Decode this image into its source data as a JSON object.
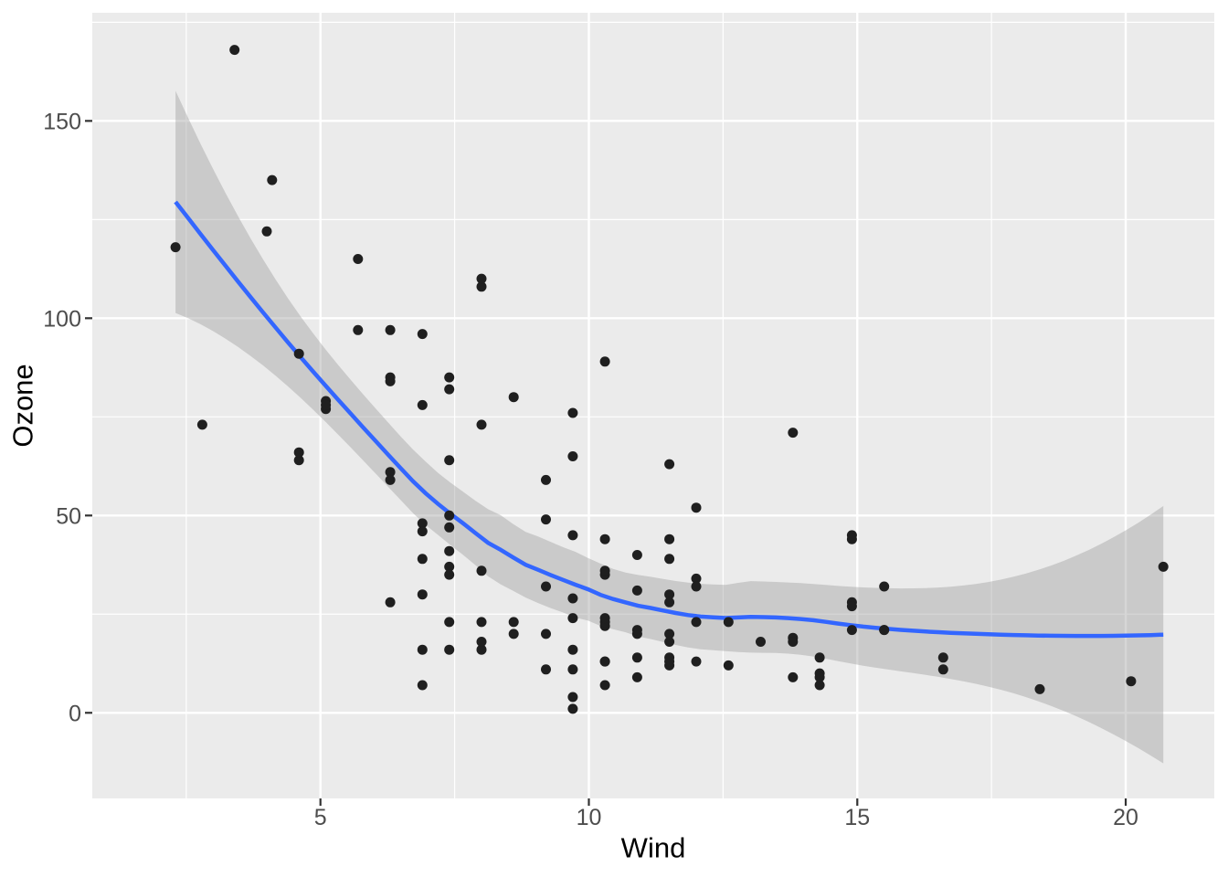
{
  "chart_data": {
    "type": "scatter",
    "title": "",
    "xlabel": "Wind",
    "ylabel": "Ozone",
    "x_ticks": [
      5,
      10,
      15,
      20
    ],
    "x_tick_labels": [
      "5",
      "10",
      "15",
      "20"
    ],
    "x_minor_ticks": [
      2.5,
      7.5,
      12.5,
      17.5
    ],
    "y_ticks": [
      0,
      50,
      100,
      150
    ],
    "y_tick_labels": [
      "0",
      "50",
      "100",
      "150"
    ],
    "y_minor_ticks": [
      25,
      75,
      125,
      175
    ],
    "xlim": [
      0.75,
      21.65
    ],
    "ylim": [
      -21.7,
      177.4
    ],
    "grid": true,
    "legend_position": "none",
    "points": [
      [
        7.4,
        41
      ],
      [
        8,
        36
      ],
      [
        12.6,
        12
      ],
      [
        11.5,
        18
      ],
      [
        14.9,
        28
      ],
      [
        8.6,
        23
      ],
      [
        13.8,
        19
      ],
      [
        20.1,
        8
      ],
      [
        6.9,
        7
      ],
      [
        9.7,
        16
      ],
      [
        9.2,
        11
      ],
      [
        10.9,
        14
      ],
      [
        13.2,
        18
      ],
      [
        11.5,
        14
      ],
      [
        12,
        34
      ],
      [
        18.4,
        6
      ],
      [
        11.5,
        30
      ],
      [
        9.7,
        11
      ],
      [
        9.7,
        1
      ],
      [
        16.6,
        11
      ],
      [
        9.7,
        4
      ],
      [
        12,
        32
      ],
      [
        12,
        23
      ],
      [
        14.9,
        45
      ],
      [
        5.7,
        115
      ],
      [
        7.4,
        37
      ],
      [
        9.7,
        29
      ],
      [
        13.8,
        71
      ],
      [
        11.5,
        39
      ],
      [
        8,
        23
      ],
      [
        14.9,
        21
      ],
      [
        20.7,
        37
      ],
      [
        9.2,
        20
      ],
      [
        11.5,
        12
      ],
      [
        10.3,
        13
      ],
      [
        4.1,
        135
      ],
      [
        9.2,
        49
      ],
      [
        9.2,
        32
      ],
      [
        4.6,
        64
      ],
      [
        10.9,
        40
      ],
      [
        5.1,
        77
      ],
      [
        6.3,
        97
      ],
      [
        5.7,
        97
      ],
      [
        7.4,
        85
      ],
      [
        14.3,
        10
      ],
      [
        14.9,
        27
      ],
      [
        14.3,
        7
      ],
      [
        6.9,
        48
      ],
      [
        10.3,
        35
      ],
      [
        6.3,
        61
      ],
      [
        5.1,
        79
      ],
      [
        11.5,
        63
      ],
      [
        6.9,
        16
      ],
      [
        8.6,
        80
      ],
      [
        8,
        108
      ],
      [
        8.6,
        20
      ],
      [
        12,
        52
      ],
      [
        7.4,
        82
      ],
      [
        7.4,
        50
      ],
      [
        7.4,
        64
      ],
      [
        9.2,
        59
      ],
      [
        6.9,
        39
      ],
      [
        13.8,
        9
      ],
      [
        7.4,
        16
      ],
      [
        6.9,
        78
      ],
      [
        7.4,
        35
      ],
      [
        4.6,
        66
      ],
      [
        4,
        122
      ],
      [
        10.3,
        89
      ],
      [
        8,
        110
      ],
      [
        11.5,
        44
      ],
      [
        11.5,
        28
      ],
      [
        9.7,
        65
      ],
      [
        10.3,
        22
      ],
      [
        6.3,
        59
      ],
      [
        7.4,
        23
      ],
      [
        10.9,
        31
      ],
      [
        10.3,
        44
      ],
      [
        15.5,
        21
      ],
      [
        14.3,
        9
      ],
      [
        9.7,
        45
      ],
      [
        3.4,
        168
      ],
      [
        8,
        73
      ],
      [
        9.7,
        76
      ],
      [
        2.3,
        118
      ],
      [
        6.3,
        84
      ],
      [
        6.3,
        85
      ],
      [
        6.9,
        96
      ],
      [
        5.1,
        78
      ],
      [
        2.8,
        73
      ],
      [
        4.6,
        91
      ],
      [
        7.4,
        47
      ],
      [
        15.5,
        32
      ],
      [
        10.9,
        20
      ],
      [
        10.3,
        23
      ],
      [
        10.9,
        21
      ],
      [
        9.7,
        24
      ],
      [
        14.9,
        44
      ],
      [
        15.5,
        21
      ],
      [
        6.3,
        28
      ],
      [
        10.9,
        9
      ],
      [
        11.5,
        13
      ],
      [
        6.9,
        46
      ],
      [
        13.8,
        18
      ],
      [
        10.3,
        13
      ],
      [
        10.3,
        24
      ],
      [
        8,
        16
      ],
      [
        12,
        13
      ],
      [
        12.6,
        23
      ],
      [
        10.3,
        36
      ],
      [
        10.3,
        7
      ],
      [
        16.6,
        14
      ],
      [
        6.9,
        30
      ],
      [
        14.3,
        14
      ],
      [
        8,
        18
      ],
      [
        11.5,
        20
      ]
    ],
    "smooth": {
      "method": "loess",
      "span": 0.75,
      "degree": 2,
      "ci_level": 0.95,
      "t_value": 1.98,
      "n_eval": 80
    }
  },
  "style": {
    "background": "#FFFFFF",
    "panel_bg": "#EBEBEB",
    "grid_color": "#FFFFFF",
    "point_color": "#1F1F1F",
    "line_color": "#3366FF",
    "ribbon_color": "#999999",
    "ribbon_alpha": 0.4,
    "tick_mark_color": "#333333",
    "tick_label_color": "#4D4D4D",
    "axis_title_color": "#000000"
  }
}
